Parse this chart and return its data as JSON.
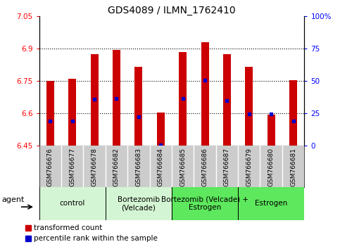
{
  "title": "GDS4089 / ILMN_1762410",
  "samples": [
    "GSM766676",
    "GSM766677",
    "GSM766678",
    "GSM766682",
    "GSM766683",
    "GSM766684",
    "GSM766685",
    "GSM766686",
    "GSM766687",
    "GSM766679",
    "GSM766680",
    "GSM766681"
  ],
  "bar_tops": [
    6.75,
    6.76,
    6.875,
    6.893,
    6.815,
    6.605,
    6.885,
    6.93,
    6.875,
    6.815,
    6.595,
    6.755
  ],
  "bar_bottom": 6.45,
  "percentile_values": [
    6.565,
    6.565,
    6.665,
    6.67,
    6.583,
    6.452,
    6.67,
    6.753,
    6.66,
    6.597,
    6.597,
    6.565
  ],
  "ylim": [
    6.45,
    7.05
  ],
  "yticks": [
    6.45,
    6.6,
    6.75,
    6.9,
    7.05
  ],
  "ytick_labels": [
    "6.45",
    "6.6",
    "6.75",
    "6.9",
    "7.05"
  ],
  "y2ticks_pct": [
    0,
    25,
    50,
    75,
    100
  ],
  "y2tick_labels": [
    "0",
    "25",
    "50",
    "75",
    "100%"
  ],
  "dotted_lines": [
    6.6,
    6.75,
    6.9
  ],
  "bar_color": "#cc0000",
  "dot_color": "#0000cc",
  "groups": [
    {
      "label": "control",
      "start": 0,
      "end": 3,
      "color": "#d4f5d4"
    },
    {
      "label": "Bortezomib\n(Velcade)",
      "start": 3,
      "end": 6,
      "color": "#d4f5d4"
    },
    {
      "label": "Bortezomib (Velcade) +\nEstrogen",
      "start": 6,
      "end": 9,
      "color": "#5de85d"
    },
    {
      "label": "Estrogen",
      "start": 9,
      "end": 12,
      "color": "#5de85d"
    }
  ],
  "legend_red_label": "transformed count",
  "legend_blue_label": "percentile rank within the sample",
  "agent_label": "agent",
  "bar_width": 0.35,
  "sample_band_color": "#cccccc"
}
